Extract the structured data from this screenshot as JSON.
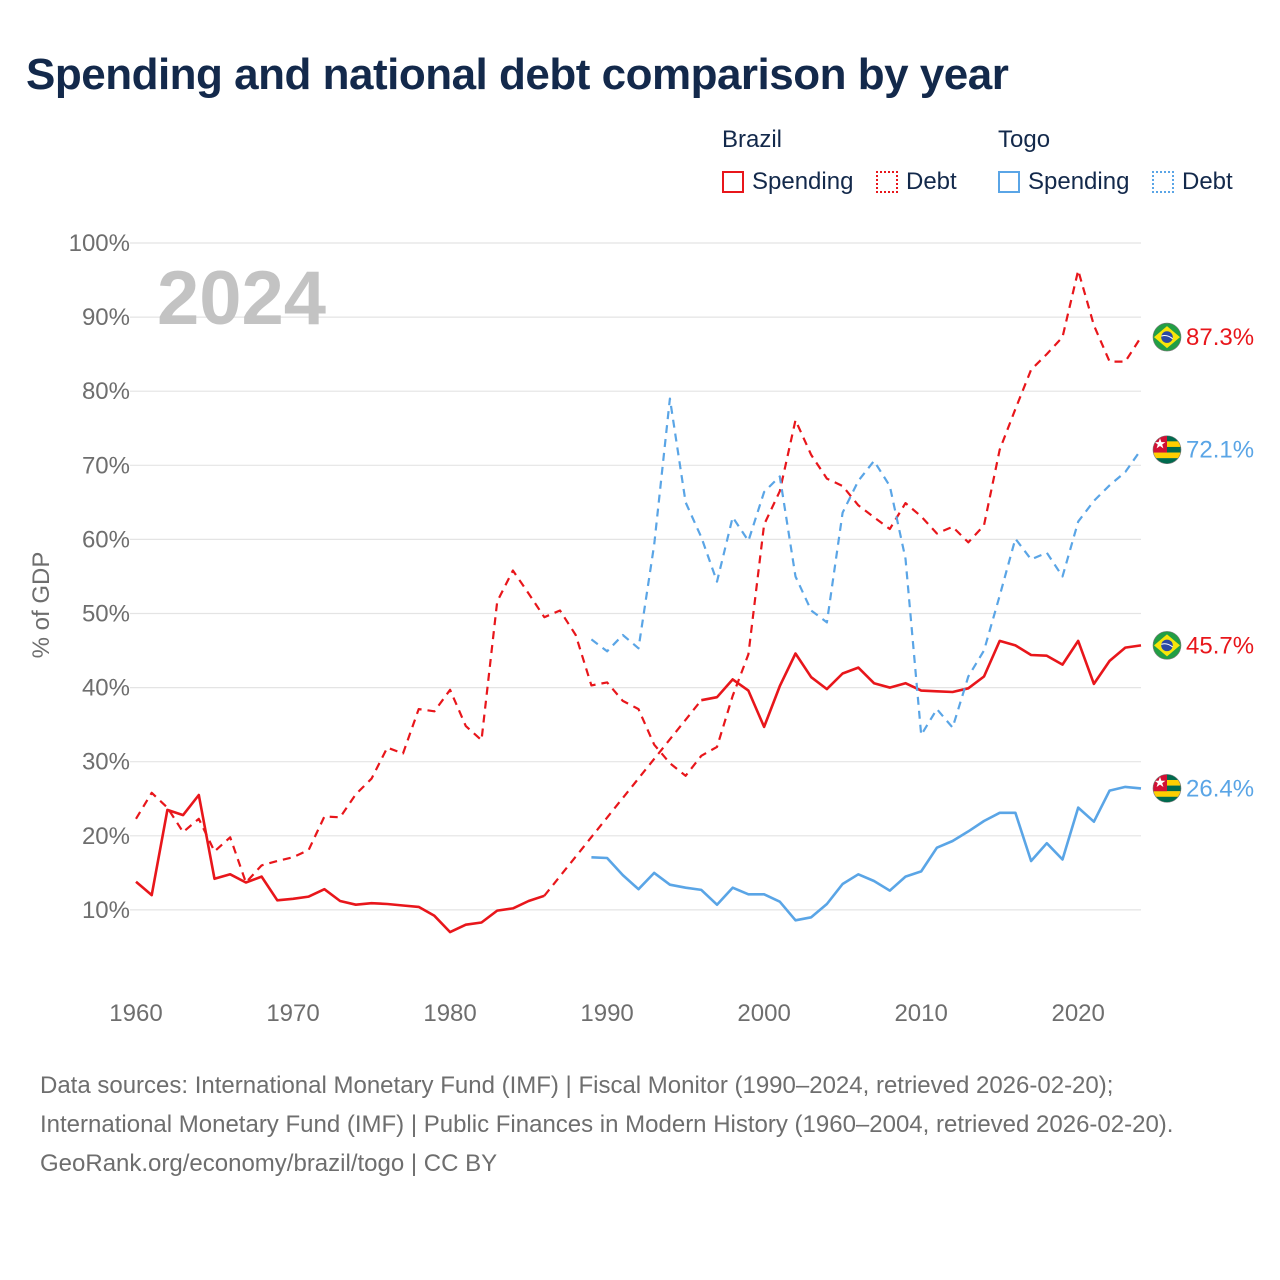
{
  "title": "Spending and national debt comparison by year",
  "legend": {
    "groups": [
      {
        "country": "Brazil",
        "spending_label": "Spending",
        "debt_label": "Debt"
      },
      {
        "country": "Togo",
        "spending_label": "Spending",
        "debt_label": "Debt"
      }
    ]
  },
  "footer": {
    "sources": "Data sources: International Monetary Fund (IMF) | Fiscal Monitor (1990–2024, retrieved 2026-02-20); International Monetary Fund (IMF) | Public Finances in Modern History (1960–2004, retrieved 2026-02-20).",
    "credit": "GeoRank.org/economy/brazil/togo | CC BY"
  },
  "colors": {
    "brazil": "#e8161b",
    "togo": "#5aa5e6",
    "grid": "#e4e4e4",
    "axis_text": "#6e6e6e",
    "year_watermark": "#c3c3c3"
  },
  "chart_data": {
    "type": "line",
    "title": "Spending and national debt comparison by year",
    "ylabel": "% of GDP",
    "xlabel": "",
    "year_label": "2024",
    "ylim": [
      0,
      100
    ],
    "xlim": [
      1960,
      2024
    ],
    "yticks": [
      10,
      20,
      30,
      40,
      50,
      60,
      70,
      80,
      90,
      100
    ],
    "ytick_labels": [
      "10%",
      "20%",
      "30%",
      "40%",
      "50%",
      "60%",
      "70%",
      "80%",
      "90%",
      "100%"
    ],
    "xticks": [
      1960,
      1970,
      1980,
      1990,
      2000,
      2010,
      2020
    ],
    "xtick_labels": [
      "1960",
      "1970",
      "1980",
      "1990",
      "2000",
      "2010",
      "2020"
    ],
    "series": [
      {
        "name": "Brazil Spending",
        "country": "Brazil",
        "measure": "Spending",
        "style": "solid",
        "color": "#e8161b",
        "end_label": "45.7%",
        "flag": "brazil",
        "x": [
          1960,
          1961,
          1962,
          1963,
          1964,
          1965,
          1966,
          1967,
          1968,
          1969,
          1970,
          1971,
          1972,
          1973,
          1974,
          1975,
          1976,
          1977,
          1978,
          1979,
          1980,
          1981,
          1982,
          1983,
          1984,
          1985,
          1986,
          1987,
          1988,
          1989,
          1990,
          1991,
          1992,
          1993,
          1994,
          1995,
          1996,
          1997,
          1998,
          1999,
          2000,
          2001,
          2002,
          2003,
          2004,
          2005,
          2006,
          2007,
          2008,
          2009,
          2010,
          2011,
          2012,
          2013,
          2014,
          2015,
          2016,
          2017,
          2018,
          2019,
          2020,
          2021,
          2022,
          2023,
          2024
        ],
        "values": [
          13.8,
          12.0,
          23.5,
          22.8,
          25.5,
          14.2,
          14.8,
          13.7,
          14.5,
          11.3,
          11.5,
          11.8,
          12.8,
          11.2,
          10.7,
          10.9,
          10.8,
          10.6,
          10.4,
          9.2,
          7.0,
          8.0,
          8.3,
          9.9,
          10.2,
          11.2,
          11.9,
          null,
          null,
          null,
          null,
          null,
          null,
          null,
          null,
          null,
          38.3,
          38.7,
          41.1,
          39.6,
          34.7,
          40.2,
          44.6,
          41.4,
          39.8,
          41.9,
          42.7,
          40.6,
          40.0,
          40.6,
          39.6,
          39.5,
          39.4,
          39.9,
          41.5,
          46.3,
          45.7,
          44.4,
          44.3,
          43.1,
          46.3,
          40.5,
          43.6,
          45.4,
          45.7
        ],
        "interpolated_gap": [
          1986,
          1996
        ]
      },
      {
        "name": "Brazil Debt",
        "country": "Brazil",
        "measure": "Debt",
        "style": "dashed",
        "color": "#e8161b",
        "end_label": "87.3%",
        "flag": "brazil",
        "x": [
          1960,
          1961,
          1962,
          1963,
          1964,
          1965,
          1966,
          1967,
          1968,
          1969,
          1970,
          1971,
          1972,
          1973,
          1974,
          1975,
          1976,
          1977,
          1978,
          1979,
          1980,
          1981,
          1982,
          1983,
          1984,
          1985,
          1986,
          1987,
          1988,
          1989,
          1990,
          1991,
          1992,
          1993,
          1994,
          1995,
          1996,
          1997,
          1998,
          1999,
          2000,
          2001,
          2002,
          2003,
          2004,
          2005,
          2006,
          2007,
          2008,
          2009,
          2010,
          2011,
          2012,
          2013,
          2014,
          2015,
          2016,
          2017,
          2018,
          2019,
          2020,
          2021,
          2022,
          2023,
          2024
        ],
        "values": [
          22.3,
          25.8,
          23.8,
          20.5,
          22.3,
          17.9,
          19.8,
          13.7,
          16.0,
          16.6,
          17.1,
          18.1,
          22.6,
          22.5,
          25.6,
          27.7,
          31.9,
          31.1,
          37.1,
          36.8,
          39.7,
          34.8,
          32.9,
          51.6,
          55.8,
          52.7,
          49.5,
          50.4,
          47.1,
          40.3,
          40.7,
          38.2,
          37.1,
          32.3,
          29.8,
          28.1,
          30.8,
          32.0,
          38.9,
          44.5,
          62.0,
          66.5,
          76.1,
          71.4,
          68.2,
          67.2,
          64.6,
          63.0,
          61.4,
          64.9,
          63.1,
          60.8,
          61.7,
          59.6,
          61.9,
          72.1,
          77.6,
          82.9,
          85.0,
          87.3,
          96.3,
          88.9,
          84.0,
          84.0,
          87.3
        ]
      },
      {
        "name": "Togo Spending",
        "country": "Togo",
        "measure": "Spending",
        "style": "solid",
        "color": "#5aa5e6",
        "end_label": "26.4%",
        "flag": "togo",
        "x": [
          1989,
          1990,
          1991,
          1992,
          1993,
          1994,
          1995,
          1996,
          1997,
          1998,
          1999,
          2000,
          2001,
          2002,
          2003,
          2004,
          2005,
          2006,
          2007,
          2008,
          2009,
          2010,
          2011,
          2012,
          2013,
          2014,
          2015,
          2016,
          2017,
          2018,
          2019,
          2020,
          2021,
          2022,
          2023,
          2024
        ],
        "values": [
          17.1,
          17.0,
          14.7,
          12.8,
          15.0,
          13.4,
          13.0,
          12.7,
          10.7,
          13.0,
          12.1,
          12.1,
          11.1,
          8.6,
          9.0,
          10.8,
          13.5,
          14.8,
          13.9,
          12.6,
          14.5,
          15.2,
          18.4,
          19.3,
          20.6,
          22.0,
          23.1,
          23.1,
          16.6,
          19.0,
          16.8,
          23.8,
          21.9,
          26.1,
          26.6,
          26.4
        ]
      },
      {
        "name": "Togo Debt",
        "country": "Togo",
        "measure": "Debt",
        "style": "dashed",
        "color": "#5aa5e6",
        "end_label": "72.1%",
        "flag": "togo",
        "x": [
          1989,
          1990,
          1991,
          1992,
          1993,
          1994,
          1995,
          1996,
          1997,
          1998,
          1999,
          2000,
          2001,
          2002,
          2003,
          2004,
          2005,
          2006,
          2007,
          2008,
          2009,
          2010,
          2011,
          2012,
          2013,
          2014,
          2015,
          2016,
          2017,
          2018,
          2019,
          2020,
          2021,
          2022,
          2023,
          2024
        ],
        "values": [
          46.5,
          44.9,
          47.1,
          45.3,
          59.3,
          79.0,
          65.0,
          60.3,
          54.3,
          63.0,
          59.8,
          66.4,
          68.5,
          55.0,
          50.4,
          48.8,
          63.6,
          67.9,
          70.6,
          67.2,
          57.4,
          33.6,
          37.1,
          34.6,
          41.5,
          45.0,
          52.4,
          60.1,
          57.3,
          58.2,
          55.0,
          62.4,
          65.2,
          67.3,
          69.1,
          72.1
        ]
      }
    ]
  }
}
